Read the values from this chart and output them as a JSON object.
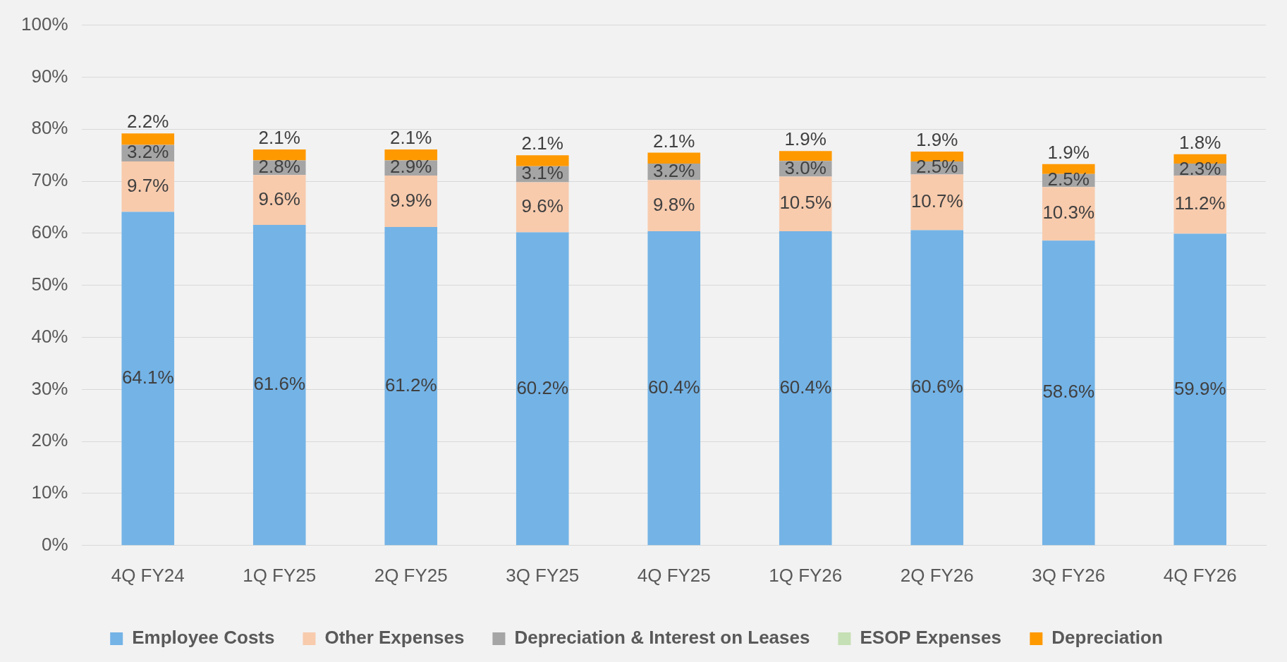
{
  "chart_data": {
    "type": "bar",
    "stacked": true,
    "grid": "y",
    "legend": "bottom",
    "categories": [
      "4Q FY24",
      "1Q FY25",
      "2Q FY25",
      "3Q FY25",
      "4Q FY25",
      "1Q FY26",
      "2Q FY26",
      "3Q FY26",
      "4Q FY26"
    ],
    "ylim": [
      0,
      100
    ],
    "yticks": [
      {
        "value": 0,
        "label": "0%"
      },
      {
        "value": 10,
        "label": "10%"
      },
      {
        "value": 20,
        "label": "20%"
      },
      {
        "value": 30,
        "label": "30%"
      },
      {
        "value": 40,
        "label": "40%"
      },
      {
        "value": 50,
        "label": "50%"
      },
      {
        "value": 60,
        "label": "60%"
      },
      {
        "value": 70,
        "label": "70%"
      },
      {
        "value": 80,
        "label": "80%"
      },
      {
        "value": 90,
        "label": "90%"
      },
      {
        "value": 100,
        "label": "100%"
      }
    ],
    "series": [
      {
        "name": "Employee Costs",
        "color": "#74b3e6",
        "values": [
          64.1,
          61.6,
          61.2,
          60.2,
          60.4,
          60.4,
          60.6,
          58.6,
          59.9
        ],
        "value_labels": [
          "64.1%",
          "61.6%",
          "61.2%",
          "60.2%",
          "60.4%",
          "60.4%",
          "60.6%",
          "58.6%",
          "59.9%"
        ]
      },
      {
        "name": "Other Expenses",
        "color": "#f8cbad",
        "values": [
          9.7,
          9.6,
          9.9,
          9.6,
          9.8,
          10.5,
          10.7,
          10.3,
          11.2
        ],
        "value_labels": [
          "9.7%",
          "9.6%",
          "9.9%",
          "9.6%",
          "9.8%",
          "10.5%",
          "10.7%",
          "10.3%",
          "11.2%"
        ]
      },
      {
        "name": "Depreciation & Interest on Leases",
        "color": "#a5a5a5",
        "values": [
          3.2,
          2.8,
          2.9,
          3.1,
          3.2,
          3.0,
          2.5,
          2.5,
          2.3
        ],
        "value_labels": [
          "3.2%",
          "2.8%",
          "2.9%",
          "3.1%",
          "3.2%",
          "3.0%",
          "2.5%",
          "2.5%",
          "2.3%"
        ]
      },
      {
        "name": "ESOP Expenses",
        "color": "#c5e0b4",
        "values": [
          null,
          null,
          null,
          null,
          null,
          null,
          null,
          null,
          null
        ]
      },
      {
        "name": "Depreciation",
        "color": "#ff9900",
        "values": [
          2.2,
          2.1,
          2.1,
          2.1,
          2.1,
          1.9,
          1.9,
          1.9,
          1.8
        ],
        "value_labels": [
          "2.2%",
          "2.1%",
          "2.1%",
          "2.1%",
          "2.1%",
          "1.9%",
          "1.9%",
          "1.9%",
          "1.8%"
        ]
      }
    ]
  }
}
